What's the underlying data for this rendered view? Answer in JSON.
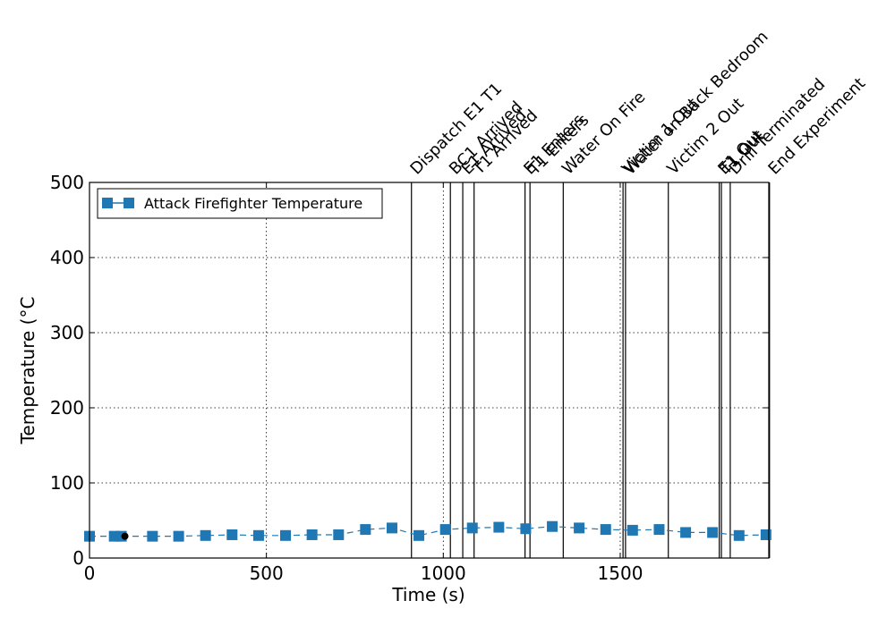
{
  "chart_data": {
    "type": "line",
    "xlabel": "Time (s)",
    "ylabel": "Temperature (°C",
    "xlim": [
      0,
      1920
    ],
    "ylim": [
      0,
      500
    ],
    "xticks": [
      0,
      500,
      1000,
      1500
    ],
    "yticks": [
      0,
      100,
      200,
      300,
      400,
      500
    ],
    "grid": true,
    "legend_position": "top-left",
    "series": [
      {
        "name": "Attack Firefighter Temperature",
        "color": "#1f77b4",
        "marker": "square",
        "line_style": "dashed",
        "x": [
          0,
          70,
          90,
          178,
          252,
          328,
          403,
          478,
          554,
          629,
          704,
          780,
          855,
          931,
          1006,
          1082,
          1157,
          1233,
          1308,
          1384,
          1459,
          1535,
          1610,
          1685,
          1761,
          1836,
          1912
        ],
        "y": [
          29,
          29,
          29,
          29,
          29,
          30,
          31,
          30,
          30,
          31,
          31,
          38,
          40,
          30,
          38,
          40,
          41,
          39,
          42,
          40,
          38,
          37,
          38,
          34,
          34,
          30,
          31
        ]
      }
    ],
    "reference_point": {
      "x": 100,
      "y": 29,
      "color": "#000000"
    },
    "events": [
      {
        "label": "Dispatch E1 T1",
        "x": 910
      },
      {
        "label": "BC1 Arrived",
        "x": 1020
      },
      {
        "label": "E1 Arrived",
        "x": 1055
      },
      {
        "label": "T1 Arrived",
        "x": 1087
      },
      {
        "label": "E1 Enters",
        "x": 1231
      },
      {
        "label": "T1 Enters",
        "x": 1245
      },
      {
        "label": "Water On Fire",
        "x": 1339
      },
      {
        "label": "Victim 1 Out",
        "x": 1508
      },
      {
        "label": "Water on Back Bedroom",
        "x": 1515
      },
      {
        "label": "Victim 2 Out",
        "x": 1636
      },
      {
        "label": "E1 Out",
        "x": 1780
      },
      {
        "label": "T1 Out",
        "x": 1786
      },
      {
        "label": "Drill Terminated",
        "x": 1811
      },
      {
        "label": "End Experiment",
        "x": 1922
      }
    ]
  }
}
